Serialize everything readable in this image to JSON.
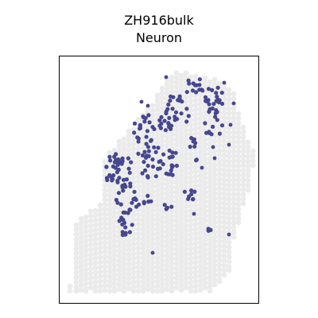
{
  "chart_data": {
    "type": "scatter",
    "title": "ZH916bulk",
    "subtitle": "Neuron",
    "xlabel": "",
    "ylabel": "",
    "axes_visible": false,
    "grid": false,
    "legend": "none",
    "colors": {
      "background_spots": "#ebebeb",
      "highlighted_spots": "#46478f",
      "frame": "#000000"
    },
    "series": [
      {
        "role": "tissue-spot-outline",
        "columns": [
          [
            88,
            360,
            366
          ],
          [
            96,
            280,
            366
          ],
          [
            102,
            275,
            366
          ],
          [
            108,
            270,
            366
          ],
          [
            114,
            266,
            366
          ],
          [
            120,
            262,
            366
          ],
          [
            126,
            258,
            366
          ],
          [
            132,
            200,
            366
          ],
          [
            138,
            192,
            366
          ],
          [
            144,
            186,
            366
          ],
          [
            150,
            178,
            366
          ],
          [
            156,
            172,
            366
          ],
          [
            162,
            165,
            366
          ],
          [
            168,
            160,
            366
          ],
          [
            174,
            150,
            366
          ],
          [
            180,
            142,
            366
          ],
          [
            186,
            136,
            366
          ],
          [
            192,
            130,
            366
          ],
          [
            198,
            120,
            366
          ],
          [
            204,
            108,
            366
          ],
          [
            210,
            100,
            366
          ],
          [
            216,
            94,
            366
          ],
          [
            222,
            92,
            366
          ],
          [
            228,
            92,
            366
          ],
          [
            234,
            92,
            366
          ],
          [
            240,
            94,
            366
          ],
          [
            246,
            96,
            366
          ],
          [
            252,
            98,
            366
          ],
          [
            258,
            98,
            366
          ],
          [
            264,
            100,
            366
          ],
          [
            270,
            100,
            360
          ],
          [
            276,
            102,
            354
          ],
          [
            282,
            106,
            346
          ],
          [
            288,
            110,
            340
          ],
          [
            294,
            118,
            300
          ],
          [
            300,
            140,
            280
          ],
          [
            306,
            160,
            260
          ],
          [
            312,
            176,
            240
          ],
          [
            318,
            190,
            210
          ]
        ]
      },
      {
        "role": "neuron-positive-spots",
        "clusters": [
          {
            "cx": 150,
            "cy": 215,
            "rx": 18,
            "ry": 24,
            "n": 40
          },
          {
            "cx": 160,
            "cy": 250,
            "rx": 14,
            "ry": 20,
            "n": 20
          },
          {
            "cx": 158,
            "cy": 285,
            "rx": 10,
            "ry": 14,
            "n": 14
          },
          {
            "cx": 185,
            "cy": 170,
            "rx": 18,
            "ry": 30,
            "n": 32
          },
          {
            "cx": 190,
            "cy": 210,
            "rx": 14,
            "ry": 14,
            "n": 14
          },
          {
            "cx": 215,
            "cy": 205,
            "rx": 14,
            "ry": 16,
            "n": 18
          },
          {
            "cx": 222,
            "cy": 140,
            "rx": 16,
            "ry": 22,
            "n": 22
          },
          {
            "cx": 205,
            "cy": 160,
            "rx": 12,
            "ry": 14,
            "n": 12
          },
          {
            "cx": 248,
            "cy": 110,
            "rx": 16,
            "ry": 12,
            "n": 14
          },
          {
            "cx": 270,
            "cy": 125,
            "rx": 12,
            "ry": 20,
            "n": 22
          },
          {
            "cx": 270,
            "cy": 160,
            "rx": 14,
            "ry": 14,
            "n": 10
          },
          {
            "cx": 238,
            "cy": 245,
            "rx": 8,
            "ry": 8,
            "n": 8
          },
          {
            "cx": 262,
            "cy": 290,
            "rx": 5,
            "ry": 4,
            "n": 4
          },
          {
            "cx": 245,
            "cy": 190,
            "rx": 14,
            "ry": 18,
            "n": 8
          },
          {
            "cx": 183,
            "cy": 255,
            "rx": 10,
            "ry": 10,
            "n": 6
          },
          {
            "cx": 212,
            "cy": 260,
            "rx": 6,
            "ry": 6,
            "n": 4
          }
        ],
        "singles": [
          [
            178,
            128
          ],
          [
            186,
            133
          ],
          [
            209,
            97
          ],
          [
            192,
            318
          ],
          [
            288,
            295
          ],
          [
            270,
            199
          ],
          [
            288,
            182
          ],
          [
            244,
            269
          ],
          [
            254,
            211
          ],
          [
            282,
            104
          ],
          [
            294,
            130
          ],
          [
            290,
            157
          ],
          [
            268,
            185
          ]
        ]
      }
    ]
  }
}
